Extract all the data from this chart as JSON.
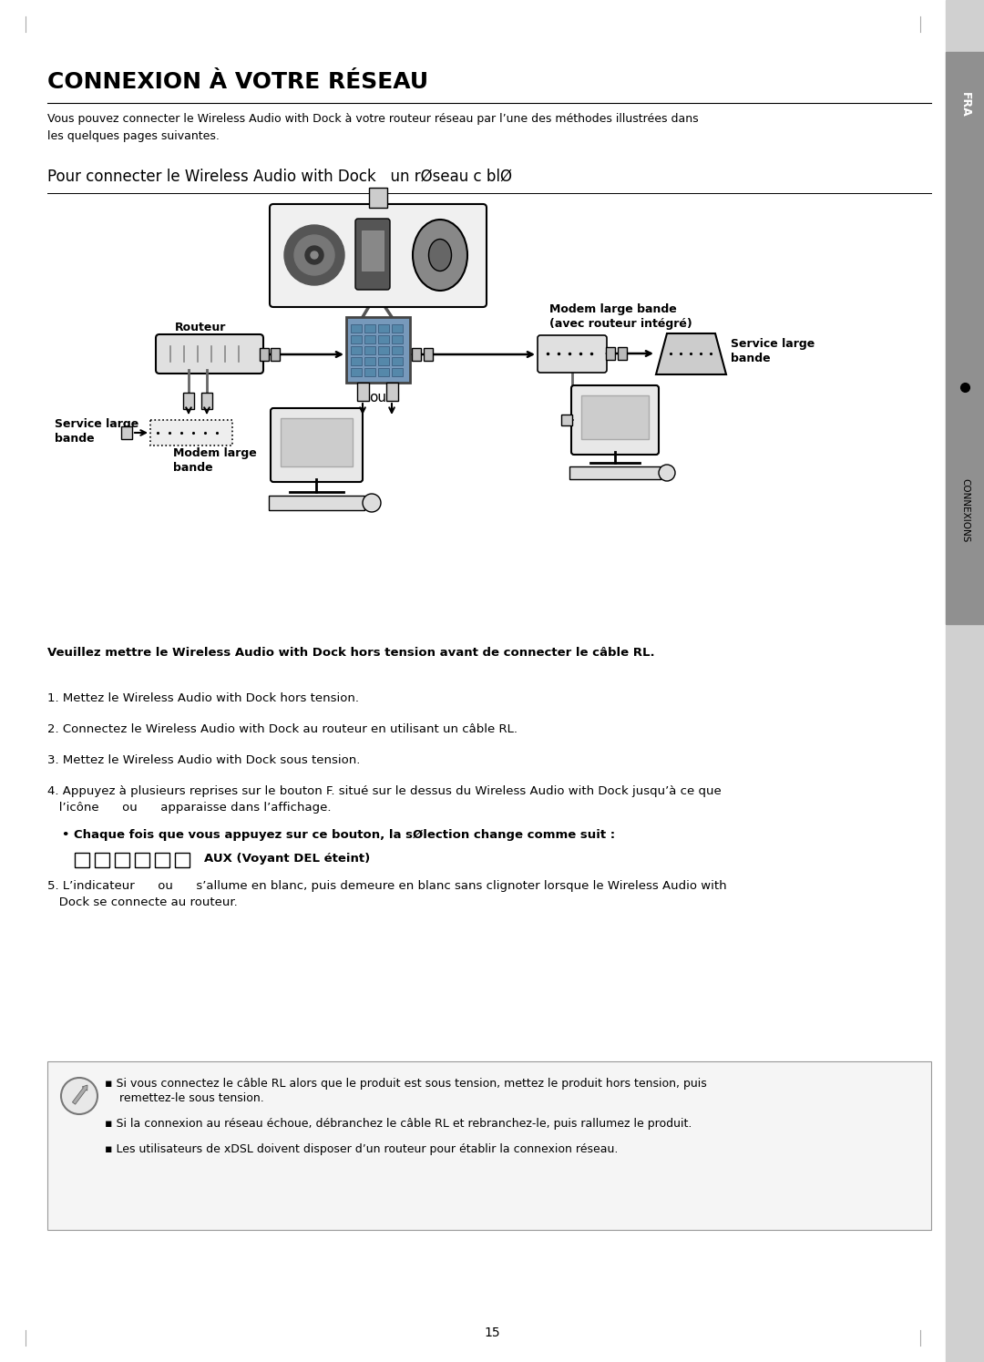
{
  "bg_color": "#ffffff",
  "sidebar_bg_light": "#d0d0d0",
  "sidebar_bg_dark": "#909090",
  "sidebar_label": "FRA",
  "sidebar_connexions": "CONNEXIONS",
  "title_main": "CONNEXION À VOTRE RÉSEAU",
  "intro_text": "Vous pouvez connecter le Wireless Audio with Dock à votre routeur réseau par l’une des méthodes illustrées dans\nles quelques pages suivantes.",
  "subtitle": "Pour connecter le Wireless Audio with Dock   un rØseau c blØ",
  "diagram_labels": {
    "routeur": "Routeur",
    "modem_integre_line1": "Modem large bande",
    "modem_integre_line2": "(avec routeur intégré)",
    "service_large_bande_right_1": "Service large",
    "service_large_bande_right_2": "bande",
    "service_large_bande_left_1": "Service large",
    "service_large_bande_left_2": "bande",
    "modem_large_bande_1": "Modem large",
    "modem_large_bande_2": "bande",
    "ou": "ou"
  },
  "warning_text": "Veuillez mettre le Wireless Audio with Dock hors tension avant de connecter le câble RL.",
  "step1": "1. Mettez le Wireless Audio with Dock hors tension.",
  "step2": "2. Connectez le Wireless Audio with Dock au routeur en utilisant un câble RL.",
  "step3": "3. Mettez le Wireless Audio with Dock sous tension.",
  "step4a": "4. Appuyez à plusieurs reprises sur le bouton F. situé sur le dessus du Wireless Audio with Dock jusqu’à ce que",
  "step4b": "   l’icône      ou      apparaisse dans l’affichage.",
  "bullet": "• Chaque fois que vous appuyez sur ce bouton, la sØlection change comme suit :",
  "icons_label": "AUX (Voyant DEL éteint)",
  "step5a": "5. L’indicateur      ou      s’allume en blanc, puis demeure en blanc sans clignoter lorsque le Wireless Audio with",
  "step5b": "   Dock se connecte au routeur.",
  "note1a": "▪ Si vous connectez le câble RL alors que le produit est sous tension, mettez le produit hors tension, puis",
  "note1b": "    remettez-le sous tension.",
  "note2": "▪ Si la connexion au réseau échoue, débranchez le câble RL et rebranchez-le, puis rallumez le produit.",
  "note3": "▪ Les utilisateurs de xDSL doivent disposer d’un routeur pour établir la connexion réseau.",
  "page_number": "15"
}
